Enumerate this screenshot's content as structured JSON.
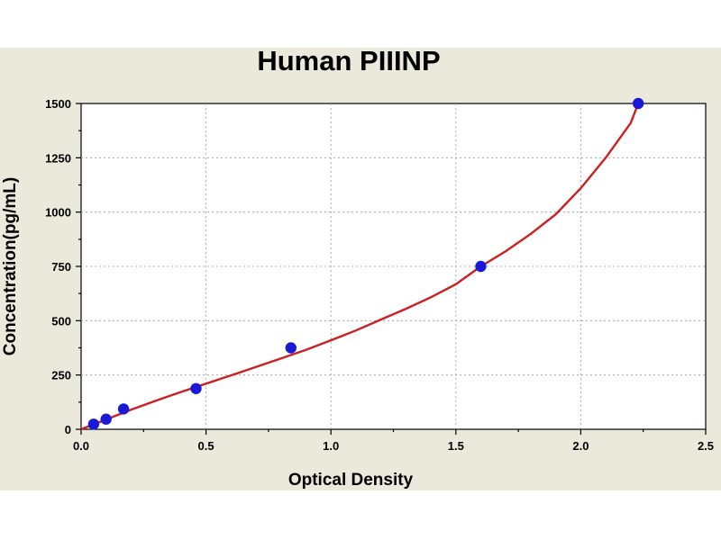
{
  "chart_data": {
    "type": "scatter",
    "title": "Human PIIINP",
    "xlabel": "Optical Density",
    "ylabel": "Concentration(pg/mL)",
    "xlim": [
      0.0,
      2.5
    ],
    "ylim": [
      0,
      1500
    ],
    "x_ticks": [
      "0.0",
      "0.5",
      "1.0",
      "1.5",
      "2.0",
      "2.5"
    ],
    "y_ticks": [
      "0",
      "250",
      "500",
      "750",
      "1000",
      "1250",
      "1500"
    ],
    "x_tick_values": [
      0.0,
      0.5,
      1.0,
      1.5,
      2.0,
      2.5
    ],
    "y_tick_values": [
      0,
      250,
      500,
      750,
      1000,
      1250,
      1500
    ],
    "grid": true,
    "series": [
      {
        "x": [
          0.05,
          0.1,
          0.17,
          0.46,
          0.84,
          1.6,
          2.23
        ],
        "y": [
          23.44,
          46.88,
          93.75,
          187.5,
          375,
          750,
          1500
        ],
        "fit_curve": {
          "x": [
            0.0,
            0.1,
            0.2,
            0.3,
            0.4,
            0.5,
            0.6,
            0.7,
            0.8,
            0.9,
            1.0,
            1.1,
            1.2,
            1.3,
            1.4,
            1.5,
            1.6,
            1.7,
            1.8,
            1.9,
            2.0,
            2.1,
            2.2,
            2.23
          ],
          "y": [
            0,
            45,
            90,
            132,
            172,
            210,
            248,
            287,
            326,
            366,
            410,
            455,
            505,
            555,
            608,
            668,
            750,
            820,
            900,
            990,
            1110,
            1250,
            1410,
            1500
          ]
        }
      }
    ]
  },
  "colors": {
    "background_panel": "#ebe9dc",
    "point": "#1a1ad6",
    "curve": "#cc1f1f",
    "grid": "#9a9a9a"
  }
}
